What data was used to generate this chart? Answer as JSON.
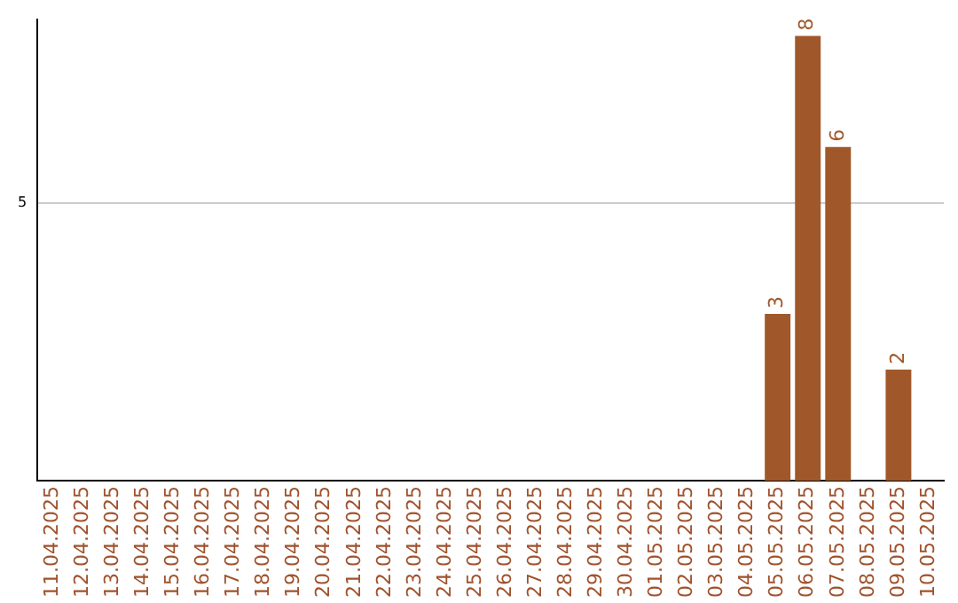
{
  "chart_data": {
    "type": "bar",
    "categories": [
      "11.04.2025",
      "12.04.2025",
      "13.04.2025",
      "14.04.2025",
      "15.04.2025",
      "16.04.2025",
      "17.04.2025",
      "18.04.2025",
      "19.04.2025",
      "20.04.2025",
      "21.04.2025",
      "22.04.2025",
      "23.04.2025",
      "24.04.2025",
      "25.04.2025",
      "26.04.2025",
      "27.04.2025",
      "28.04.2025",
      "29.04.2025",
      "30.04.2025",
      "01.05.2025",
      "02.05.2025",
      "03.05.2025",
      "04.05.2025",
      "05.05.2025",
      "06.05.2025",
      "07.05.2025",
      "08.05.2025",
      "09.05.2025",
      "10.05.2025"
    ],
    "values": [
      null,
      null,
      null,
      null,
      null,
      null,
      null,
      null,
      null,
      null,
      null,
      null,
      null,
      null,
      null,
      null,
      null,
      null,
      null,
      null,
      null,
      null,
      null,
      null,
      3,
      8,
      6,
      null,
      2,
      null
    ],
    "color": "#a0582a",
    "ylim": [
      0,
      8.3
    ],
    "yticks": [
      5
    ],
    "grid": "y",
    "data_labels": true,
    "legend": false
  }
}
